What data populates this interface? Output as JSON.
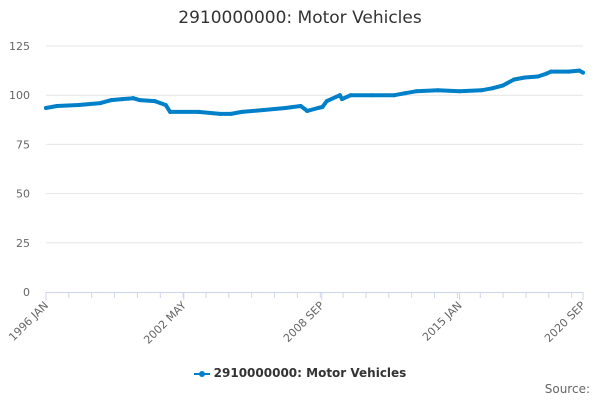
{
  "chart_data": {
    "type": "line",
    "title": "2910000000: Motor Vehicles",
    "xlabel": "",
    "ylabel": "",
    "ylim": [
      0,
      125
    ],
    "yticks": [
      0,
      25,
      50,
      75,
      100,
      125
    ],
    "xlim": [
      1996.0,
      2020.67
    ],
    "xticks": [
      {
        "label": "1996 JAN",
        "x": 1996.0
      },
      {
        "label": "2002 MAY",
        "x": 2002.33
      },
      {
        "label": "2008 SEP",
        "x": 2008.67
      },
      {
        "label": "2015 JAN",
        "x": 2015.0
      },
      {
        "label": "2020 SEP",
        "x": 2020.67
      }
    ],
    "grid": true,
    "legend_position": "bottom",
    "series": [
      {
        "name": "2910000000: Motor Vehicles",
        "color": "#0080c8",
        "x": [
          1996.0,
          1996.5,
          1997.5,
          1998.5,
          1999.0,
          1999.5,
          2000.0,
          2000.3,
          2001.0,
          2001.5,
          2001.7,
          2003.0,
          2004.0,
          2004.5,
          2005.0,
          2006.0,
          2007.0,
          2007.7,
          2008.0,
          2008.5,
          2008.7,
          2008.9,
          2009.5,
          2009.6,
          2010.0,
          2011.0,
          2012.0,
          2012.5,
          2013.0,
          2014.0,
          2015.0,
          2016.0,
          2016.5,
          2017.0,
          2017.5,
          2018.0,
          2018.6,
          2019.0,
          2019.2,
          2020.0,
          2020.5,
          2020.67
        ],
        "values": [
          93.5,
          94.5,
          95,
          96,
          97.5,
          98,
          98.5,
          97.5,
          97,
          95,
          91.5,
          91.5,
          90.5,
          90.5,
          91.5,
          92.5,
          93.5,
          94.5,
          92,
          93.5,
          94,
          97,
          100,
          98,
          100,
          100,
          100,
          101,
          102,
          102.5,
          102,
          102.5,
          103.5,
          105,
          108,
          109,
          109.5,
          111,
          112,
          112,
          112.5,
          111.5
        ]
      }
    ]
  },
  "source_label": "Source:"
}
